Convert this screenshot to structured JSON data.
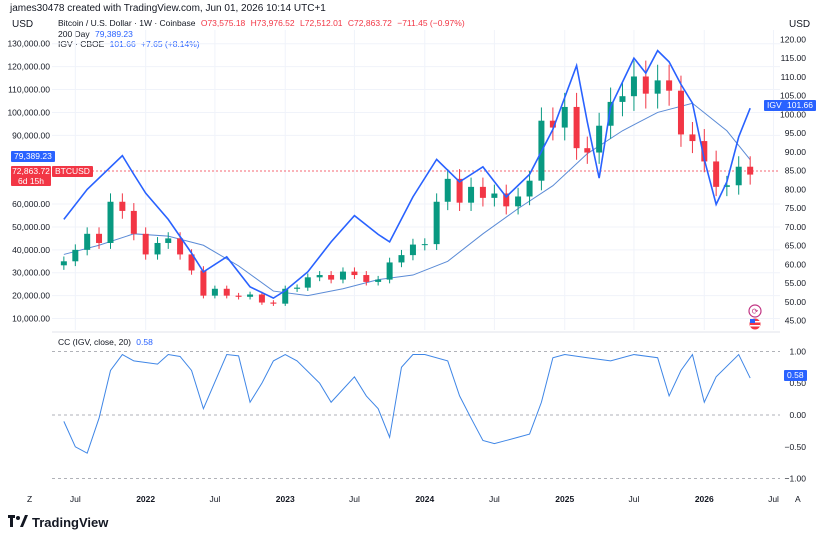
{
  "header": {
    "caption": "james30478 created with TradingView.com, Jun 01, 2026 10:14 UTC+1"
  },
  "price_pane": {
    "left_unit": "USD",
    "right_unit": "USD",
    "legend": {
      "btc_name": "Bitcoin / U.S. Dollar · 1W · Coinbase",
      "btc_o": "O73,575.18",
      "btc_h": "H73,976.52",
      "btc_l": "L72,512.01",
      "btc_c": "C72,863.72",
      "btc_chg": "−711.45 (−0.97%)",
      "ma_name": "200 Day",
      "ma_val": "79,389.23",
      "igv_name": "IGV · CBOE",
      "igv_val": "101.66",
      "igv_chg": "+7.65 (+8.14%)"
    },
    "tags": {
      "ma_tag": "79,389.23",
      "btc_price": "72,863.72",
      "btc_symbol": "BTCUSD",
      "btc_countdown": "6d 15h",
      "igv_symbol": "IGV",
      "igv_price": "101.66"
    }
  },
  "osc_pane": {
    "legend_name": "CC (IGV, close, 20)",
    "legend_val": "0.58",
    "last_tag": "0.58"
  },
  "time_axis": {
    "left_btn": "Z",
    "right_btn": "A",
    "labels": [
      "Jul",
      "2022",
      "Jul",
      "2023",
      "Jul",
      "2024",
      "Jul",
      "2025",
      "Jul",
      "2026",
      "Jul"
    ]
  },
  "brand": {
    "name": "TradingView"
  },
  "colors": {
    "igv": "#2962ff",
    "ma": "#5b8bd6",
    "up": "#089981",
    "down": "#f23645",
    "cc": "#3f86e6",
    "grid": "#f0f3fa",
    "tag_red": "#f23645",
    "tag_blue": "#2962ff"
  },
  "chart_data": [
    {
      "type": "line",
      "title": "Bitcoin / U.S. Dollar · 1W · Coinbase",
      "left_axis": {
        "label": "USD",
        "range": [
          5000,
          136000
        ],
        "ticks": [
          "10,000.00",
          "20,000.00",
          "30,000.00",
          "40,000.00",
          "50,000.00",
          "60,000.00",
          "90,000.00",
          "100,000.00",
          "110,000.00",
          "120,000.00",
          "130,000.00"
        ]
      },
      "right_axis": {
        "label": "USD",
        "range": [
          42.5,
          122.5
        ],
        "ticks": [
          "45.00",
          "50.00",
          "55.00",
          "60.00",
          "65.00",
          "70.00",
          "75.00",
          "80.00",
          "85.00",
          "90.00",
          "95.00",
          "100.00",
          "105.00",
          "110.00",
          "115.00",
          "120.00"
        ]
      },
      "series": [
        {
          "name": "Bitcoin / U.S. Dollar · 1W · Coinbase",
          "kind": "candlestick",
          "axis": "left",
          "x": [
            "2021-06",
            "2021-07",
            "2021-08",
            "2021-09",
            "2021-10",
            "2021-11",
            "2021-12",
            "2022-01",
            "2022-02",
            "2022-03",
            "2022-04",
            "2022-05",
            "2022-06",
            "2022-07",
            "2022-08",
            "2022-09",
            "2022-10",
            "2022-11",
            "2022-12",
            "2023-01",
            "2023-02",
            "2023-03",
            "2023-04",
            "2023-05",
            "2023-06",
            "2023-07",
            "2023-08",
            "2023-09",
            "2023-10",
            "2023-11",
            "2023-12",
            "2024-01",
            "2024-02",
            "2024-03",
            "2024-04",
            "2024-05",
            "2024-06",
            "2024-07",
            "2024-08",
            "2024-09",
            "2024-10",
            "2024-11",
            "2024-12",
            "2025-01",
            "2025-02",
            "2025-03",
            "2025-04",
            "2025-05",
            "2025-06",
            "2025-07",
            "2025-08",
            "2025-09",
            "2025-10",
            "2025-11",
            "2025-12",
            "2026-01",
            "2026-02",
            "2026-03",
            "2026-04",
            "2026-05"
          ],
          "close": [
            35000,
            40000,
            47000,
            43000,
            61000,
            57000,
            47000,
            38000,
            43000,
            45000,
            38000,
            31000,
            20000,
            23000,
            20000,
            19500,
            20500,
            17000,
            16500,
            23000,
            23500,
            28000,
            29000,
            27000,
            30500,
            29000,
            26000,
            27000,
            34500,
            37700,
            42300,
            42500,
            61000,
            71000,
            60600,
            67500,
            62700,
            64600,
            59000,
            63300,
            70200,
            96400,
            93400,
            102400,
            84400,
            82500,
            94200,
            104600,
            107100,
            115700,
            108200,
            114000,
            109500,
            90400,
            87500,
            78600,
            67500,
            68200,
            76300,
            72864
          ]
        },
        {
          "name": "200 Day",
          "axis": "left",
          "x": [
            "2021-06",
            "2021-09",
            "2021-12",
            "2022-03",
            "2022-06",
            "2022-09",
            "2022-12",
            "2023-03",
            "2023-06",
            "2023-09",
            "2023-12",
            "2024-03",
            "2024-06",
            "2024-09",
            "2024-12",
            "2025-03",
            "2025-06",
            "2025-09",
            "2025-12",
            "2026-03",
            "2026-05"
          ],
          "y": [
            38000,
            42000,
            47000,
            46000,
            42000,
            33000,
            22000,
            20000,
            23000,
            27000,
            29000,
            35000,
            47000,
            58000,
            68000,
            82000,
            92000,
            100000,
            104000,
            92000,
            79389
          ]
        },
        {
          "name": "IGV · CBOE",
          "axis": "right",
          "x": [
            "2021-06",
            "2021-08",
            "2021-11",
            "2021-12",
            "2022-01",
            "2022-03",
            "2022-05",
            "2022-06",
            "2022-08",
            "2022-10",
            "2022-12",
            "2023-01",
            "2023-03",
            "2023-05",
            "2023-07",
            "2023-09",
            "2023-10",
            "2023-12",
            "2024-02",
            "2024-04",
            "2024-06",
            "2024-08",
            "2024-10",
            "2024-12",
            "2025-02",
            "2025-03",
            "2025-04",
            "2025-05",
            "2025-07",
            "2025-08",
            "2025-09",
            "2025-10",
            "2025-11",
            "2025-12",
            "2026-01",
            "2026-02",
            "2026-03",
            "2026-04",
            "2026-05"
          ],
          "y": [
            72,
            80,
            89,
            84,
            79,
            72,
            63,
            58,
            62,
            54,
            51,
            53,
            58,
            66,
            73,
            68,
            66,
            78,
            88,
            82,
            86,
            78,
            84,
            96,
            113,
            98,
            83,
            102,
            115,
            111,
            117,
            114,
            108,
            103,
            88,
            76,
            82,
            94,
            101.66
          ]
        }
      ]
    },
    {
      "type": "line",
      "title": "CC (IGV, close, 20)",
      "y_range": [
        -1.1,
        1.1
      ],
      "y_ticks": [
        "1.00",
        "0.50",
        "0.00",
        "−0.50",
        "−1.00"
      ],
      "series": [
        {
          "name": "CC (IGV, close, 20)",
          "x": [
            "2021-06",
            "2021-07",
            "2021-08",
            "2021-09",
            "2021-10",
            "2021-11",
            "2021-12",
            "2022-02",
            "2022-03",
            "2022-04",
            "2022-05",
            "2022-06",
            "2022-08",
            "2022-09",
            "2022-10",
            "2022-11",
            "2022-12",
            "2023-01",
            "2023-02",
            "2023-04",
            "2023-05",
            "2023-07",
            "2023-08",
            "2023-09",
            "2023-10",
            "2023-11",
            "2023-12",
            "2024-01",
            "2024-03",
            "2024-04",
            "2024-05",
            "2024-06",
            "2024-07",
            "2024-08",
            "2024-09",
            "2024-10",
            "2024-11",
            "2024-12",
            "2025-01",
            "2025-03",
            "2025-05",
            "2025-07",
            "2025-09",
            "2025-10",
            "2025-11",
            "2025-12",
            "2026-01",
            "2026-02",
            "2026-04",
            "2026-05"
          ],
          "y": [
            -0.1,
            -0.5,
            -0.6,
            -0.05,
            0.7,
            0.95,
            0.85,
            0.8,
            0.95,
            0.92,
            0.7,
            0.1,
            0.95,
            0.93,
            0.2,
            0.5,
            0.85,
            0.95,
            0.85,
            0.5,
            0.2,
            0.6,
            0.3,
            0.1,
            -0.35,
            0.75,
            0.95,
            0.95,
            0.85,
            0.3,
            -0.05,
            -0.4,
            -0.45,
            -0.4,
            -0.35,
            -0.3,
            0.2,
            0.9,
            0.95,
            0.9,
            0.85,
            0.95,
            0.9,
            0.3,
            0.7,
            0.95,
            0.2,
            0.6,
            0.95,
            0.58
          ]
        }
      ]
    }
  ]
}
